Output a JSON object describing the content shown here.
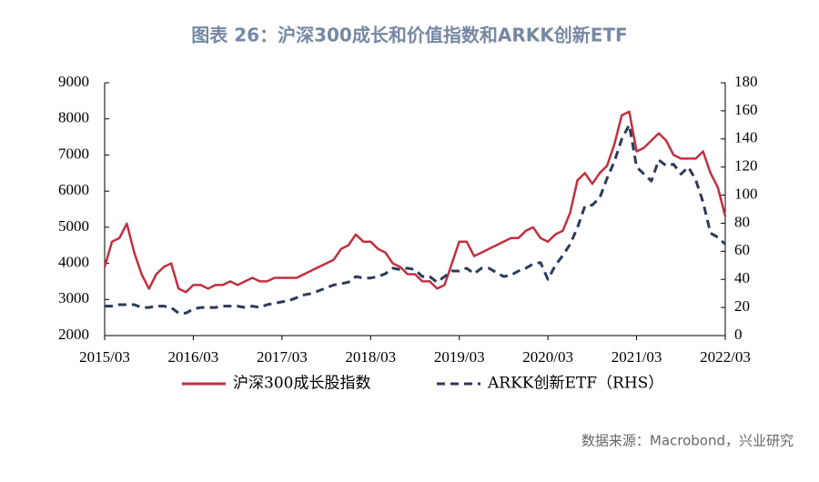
{
  "chart_data": {
    "type": "line",
    "title": "图表 26：沪深300成长和价值指数和ARKK创新ETF",
    "source": "数据来源：Macrobond，兴业研究",
    "x": [
      "2015/03",
      "2015/04",
      "2015/05",
      "2015/06",
      "2015/07",
      "2015/08",
      "2015/09",
      "2015/10",
      "2015/11",
      "2015/12",
      "2016/01",
      "2016/02",
      "2016/03",
      "2016/04",
      "2016/05",
      "2016/06",
      "2016/07",
      "2016/08",
      "2016/09",
      "2016/10",
      "2016/11",
      "2016/12",
      "2017/01",
      "2017/02",
      "2017/03",
      "2017/04",
      "2017/05",
      "2017/06",
      "2017/07",
      "2017/08",
      "2017/09",
      "2017/10",
      "2017/11",
      "2017/12",
      "2018/01",
      "2018/02",
      "2018/03",
      "2018/04",
      "2018/05",
      "2018/06",
      "2018/07",
      "2018/08",
      "2018/09",
      "2018/10",
      "2018/11",
      "2018/12",
      "2019/01",
      "2019/02",
      "2019/03",
      "2019/04",
      "2019/05",
      "2019/06",
      "2019/07",
      "2019/08",
      "2019/09",
      "2019/10",
      "2019/11",
      "2019/12",
      "2020/01",
      "2020/02",
      "2020/03",
      "2020/04",
      "2020/05",
      "2020/06",
      "2020/07",
      "2020/08",
      "2020/09",
      "2020/10",
      "2020/11",
      "2020/12",
      "2021/01",
      "2021/02",
      "2021/03",
      "2021/04",
      "2021/05",
      "2021/06",
      "2021/07",
      "2021/08",
      "2021/09",
      "2021/10",
      "2021/11",
      "2021/12",
      "2022/01",
      "2022/02",
      "2022/03"
    ],
    "xticks": [
      "2015/03",
      "2016/03",
      "2017/03",
      "2018/03",
      "2019/03",
      "2020/03",
      "2021/03",
      "2022/03"
    ],
    "ylim": [
      2000,
      9000
    ],
    "yticks": [
      2000,
      3000,
      4000,
      5000,
      6000,
      7000,
      8000,
      9000
    ],
    "y2lim": [
      0,
      180
    ],
    "y2ticks": [
      0,
      20,
      40,
      60,
      80,
      100,
      120,
      140,
      160,
      180
    ],
    "series": [
      {
        "name": "沪深300成长股指数",
        "color": "#c0303f",
        "values": [
          3900,
          4600,
          4700,
          5100,
          4300,
          3700,
          3300,
          3700,
          3900,
          4000,
          3300,
          3200,
          3400,
          3400,
          3300,
          3400,
          3400,
          3500,
          3400,
          3500,
          3600,
          3500,
          3500,
          3600,
          3600,
          3600,
          3600,
          3700,
          3800,
          3900,
          4000,
          4100,
          4400,
          4500,
          4800,
          4600,
          4600,
          4400,
          4300,
          4000,
          3900,
          3700,
          3700,
          3500,
          3500,
          3300,
          3400,
          4000,
          4600,
          4600,
          4200,
          4300,
          4400,
          4500,
          4600,
          4700,
          4700,
          4900,
          5000,
          4700,
          4600,
          4800,
          4900,
          5400,
          6300,
          6500,
          6200,
          6500,
          6700,
          7300,
          8100,
          8200,
          7100,
          7200,
          7400,
          7600,
          7400,
          7000,
          6900,
          6900,
          6900,
          7100,
          6500,
          6100,
          5300
        ]
      },
      {
        "name": "ARKK创新ETF（RHS）",
        "color": "#2b3a5c",
        "axis": "y2",
        "dashed": true,
        "values": [
          21,
          21,
          22,
          22,
          22,
          20,
          20,
          21,
          21,
          20,
          16,
          16,
          19,
          20,
          20,
          20,
          21,
          21,
          21,
          20,
          21,
          20,
          22,
          23,
          24,
          25,
          27,
          29,
          30,
          32,
          34,
          36,
          37,
          38,
          42,
          41,
          41,
          42,
          44,
          48,
          47,
          48,
          47,
          42,
          42,
          38,
          42,
          46,
          46,
          48,
          44,
          48,
          48,
          45,
          42,
          43,
          46,
          48,
          51,
          52,
          40,
          50,
          57,
          65,
          77,
          92,
          93,
          98,
          112,
          124,
          140,
          150,
          120,
          115,
          110,
          125,
          121,
          122,
          115,
          120,
          111,
          95,
          73,
          70,
          65
        ]
      }
    ]
  }
}
